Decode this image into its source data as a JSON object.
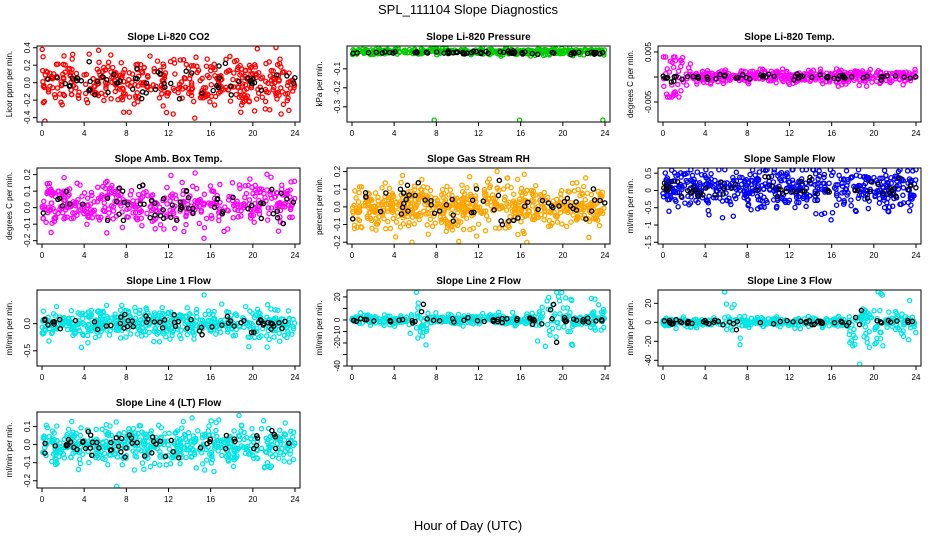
{
  "figure": {
    "title": "SPL_111104  Slope Diagnostics",
    "xlabel": "Hour of Day (UTC)"
  },
  "colors": {
    "black": "#000000",
    "red": "#ff0000",
    "green": "#00cc00",
    "magenta": "#ff00ff",
    "orange": "#ffa500",
    "blue": "#0000ff",
    "cyan": "#00e5e5"
  },
  "chart_data": [
    {
      "type": "scatter",
      "title": "Slope Li-820 CO2",
      "ylabel": "Licor ppm per min.",
      "xlim": [
        0,
        24
      ],
      "xticks": [
        "0",
        "4",
        "8",
        "12",
        "16",
        "20",
        "24"
      ],
      "ylim": [
        -0.45,
        0.42
      ],
      "yticks": [
        {
          "v": -0.4,
          "t": "-0.4"
        },
        {
          "v": -0.2,
          "t": "-0.2"
        },
        {
          "v": 0,
          "t": "0.0"
        },
        {
          "v": 0.2,
          "t": "0.2"
        },
        {
          "v": 0.4,
          "t": "0.4"
        }
      ],
      "series": [
        {
          "color": "red",
          "n": 420,
          "center": 0,
          "spread": 0.14,
          "clip": [
            -0.44,
            0.41
          ]
        },
        {
          "color": "black",
          "n": 60,
          "center": 0,
          "spread": 0.1,
          "clip": [
            -0.3,
            0.3
          ]
        }
      ]
    },
    {
      "type": "scatter",
      "title": "Slope Li-820 Pressure",
      "ylabel": "kPa per min.",
      "xlim": [
        0,
        24
      ],
      "xticks": [
        "0",
        "4",
        "8",
        "12",
        "16",
        "20",
        "24"
      ],
      "ylim": [
        -0.38,
        0.02
      ],
      "yticks": [
        {
          "v": -0.1,
          "t": "-0.1"
        },
        {
          "v": -0.2,
          "t": "-0.2"
        },
        {
          "v": -0.3,
          "t": "-0.3"
        }
      ],
      "series": [
        {
          "color": "green",
          "n": 420,
          "center": -0.01,
          "spread": 0.008,
          "clip": [
            -0.06,
            0.01
          ]
        },
        {
          "color": "black",
          "n": 70,
          "center": -0.015,
          "spread": 0.004,
          "clip": [
            -0.03,
            0.0
          ]
        }
      ],
      "extra_points": [
        {
          "color": "green",
          "x": 7.8,
          "y": -0.37
        },
        {
          "color": "green",
          "x": 15.9,
          "y": -0.37
        },
        {
          "color": "green",
          "x": 23.8,
          "y": -0.37
        }
      ]
    },
    {
      "type": "scatter",
      "title": "Slope Li-820 Temp.",
      "ylabel": "degrees C per min.",
      "xlim": [
        0,
        24
      ],
      "xticks": [
        "0",
        "4",
        "8",
        "12",
        "16",
        "20",
        "24"
      ],
      "ylim": [
        -0.009,
        0.0062
      ],
      "yticks": [
        {
          "v": 0.005,
          "t": "0.005"
        },
        {
          "v": 0,
          "t": ""
        },
        {
          "v": -0.005,
          "t": "-0.005"
        }
      ],
      "series": [
        {
          "color": "magenta",
          "n": 420,
          "center": 0,
          "spread": 0.0007,
          "clip": [
            -0.004,
            0.004
          ],
          "early_spread": 0.004
        },
        {
          "color": "black",
          "n": 60,
          "center": 0,
          "spread": 0.0003,
          "clip": [
            -0.0015,
            0.0015
          ]
        }
      ]
    },
    {
      "type": "scatter",
      "title": "Slope Amb. Box Temp.",
      "ylabel": "degrees C per min.",
      "xlim": [
        0,
        24
      ],
      "xticks": [
        "0",
        "4",
        "8",
        "12",
        "16",
        "20",
        "24"
      ],
      "ylim": [
        -0.22,
        0.24
      ],
      "yticks": [
        {
          "v": -0.2,
          "t": "-0.2"
        },
        {
          "v": -0.1,
          "t": "-0.1"
        },
        {
          "v": 0,
          "t": "0.0"
        },
        {
          "v": 0.1,
          "t": "0.1"
        },
        {
          "v": 0.2,
          "t": "0.2"
        }
      ],
      "series": [
        {
          "color": "magenta",
          "n": 420,
          "center": 0.02,
          "spread": 0.07,
          "clip": [
            -0.21,
            0.22
          ]
        },
        {
          "color": "black",
          "n": 60,
          "center": 0.01,
          "spread": 0.06,
          "clip": [
            -0.15,
            0.15
          ]
        }
      ]
    },
    {
      "type": "scatter",
      "title": "Slope Gas Stream RH",
      "ylabel": "percent per min.",
      "xlim": [
        0,
        24
      ],
      "xticks": [
        "0",
        "4",
        "8",
        "12",
        "16",
        "20",
        "24"
      ],
      "ylim": [
        -0.21,
        0.22
      ],
      "yticks": [
        {
          "v": -0.2,
          "t": "-0.2"
        },
        {
          "v": -0.1,
          "t": "-0.1"
        },
        {
          "v": 0,
          "t": "0.0"
        },
        {
          "v": 0.1,
          "t": "0.1"
        },
        {
          "v": 0.2,
          "t": "0.2"
        }
      ],
      "series": [
        {
          "color": "orange",
          "n": 620,
          "center": 0,
          "spread": 0.065,
          "clip": [
            -0.2,
            0.2
          ]
        },
        {
          "color": "black",
          "n": 60,
          "center": 0.01,
          "spread": 0.06,
          "clip": [
            -0.15,
            0.15
          ]
        }
      ]
    },
    {
      "type": "scatter",
      "title": "Slope Sample Flow",
      "ylabel": "ml/min per min.",
      "xlim": [
        0,
        24
      ],
      "xticks": [
        "0",
        "4",
        "8",
        "12",
        "16",
        "20",
        "24"
      ],
      "ylim": [
        -1.55,
        0.65
      ],
      "yticks": [
        {
          "v": 0.5,
          "t": "0.5"
        },
        {
          "v": 0,
          "t": "0"
        },
        {
          "v": -0.5,
          "t": "-0.5"
        },
        {
          "v": -1,
          "t": "-1"
        },
        {
          "v": -1.5,
          "t": "-1.5"
        }
      ],
      "series": [
        {
          "color": "blue",
          "n": 520,
          "center": 0.05,
          "spread": 0.3,
          "clip": [
            -1.5,
            0.6
          ]
        },
        {
          "color": "black",
          "n": 60,
          "center": 0.05,
          "spread": 0.15,
          "clip": [
            -0.5,
            0.5
          ]
        }
      ]
    },
    {
      "type": "scatter",
      "title": "Slope Line 1 Flow",
      "ylabel": "ml/min per min.",
      "xlim": [
        0,
        24
      ],
      "xticks": [
        "0",
        "4",
        "8",
        "12",
        "16",
        "20",
        "24"
      ],
      "ylim": [
        -0.78,
        0.62
      ],
      "yticks": [
        {
          "v": 0,
          "t": "0.0"
        },
        {
          "v": -0.5,
          "t": "-0.5"
        }
      ],
      "series": [
        {
          "color": "cyan",
          "n": 520,
          "center": 0,
          "spread": 0.14,
          "clip": [
            -0.75,
            0.6
          ]
        },
        {
          "color": "black",
          "n": 60,
          "center": 0,
          "spread": 0.08,
          "clip": [
            -0.3,
            0.3
          ]
        }
      ]
    },
    {
      "type": "scatter",
      "title": "Slope Line 2 Flow",
      "ylabel": "ml/min per min.",
      "xlim": [
        0,
        24
      ],
      "xticks": [
        "0",
        "4",
        "8",
        "12",
        "16",
        "20",
        "24"
      ],
      "ylim": [
        -40,
        26
      ],
      "yticks": [
        {
          "v": 20,
          "t": "20"
        },
        {
          "v": 10,
          "t": ""
        },
        {
          "v": 0,
          "t": "0"
        },
        {
          "v": -10,
          "t": "-10"
        },
        {
          "v": -20,
          "t": "-20"
        },
        {
          "v": -30,
          "t": ""
        },
        {
          "v": -40,
          "t": "-40"
        }
      ],
      "series": [
        {
          "color": "cyan",
          "n": 420,
          "center": 0,
          "spread": 2.2,
          "clip": [
            -38,
            24
          ],
          "bursts": [
            [
              5.5,
              7.5,
              14
            ],
            [
              17.5,
              21,
              18
            ],
            [
              22,
              24,
              8
            ]
          ]
        },
        {
          "color": "black",
          "n": 60,
          "center": 0,
          "spread": 1.3,
          "clip": [
            -37,
            22
          ],
          "bursts": [
            [
              6.5,
              7,
              18
            ],
            [
              18,
              19.5,
              18
            ]
          ]
        }
      ]
    },
    {
      "type": "scatter",
      "title": "Slope Line 3 Flow",
      "ylabel": "ml/min per min.",
      "xlim": [
        0,
        24
      ],
      "xticks": [
        "0",
        "4",
        "8",
        "12",
        "16",
        "20",
        "24"
      ],
      "ylim": [
        -46,
        34
      ],
      "yticks": [
        {
          "v": 20,
          "t": "20"
        },
        {
          "v": 0,
          "t": "0"
        },
        {
          "v": -20,
          "t": "-20"
        },
        {
          "v": -40,
          "t": "-40"
        }
      ],
      "series": [
        {
          "color": "cyan",
          "n": 420,
          "center": 0,
          "spread": 2.5,
          "clip": [
            -44,
            32
          ],
          "bursts": [
            [
              5.5,
              7.5,
              16
            ],
            [
              17.5,
              21,
              20
            ],
            [
              22,
              24,
              9
            ]
          ]
        },
        {
          "color": "black",
          "n": 60,
          "center": 0,
          "spread": 1.5,
          "clip": [
            -40,
            26
          ],
          "bursts": [
            [
              6.5,
              7,
              18
            ],
            [
              18,
              19.5,
              18
            ]
          ]
        }
      ]
    },
    {
      "type": "scatter",
      "title": "Slope Line 4 (LT) Flow",
      "ylabel": "ml/min per min.",
      "xlim": [
        0,
        24
      ],
      "xticks": [
        "0",
        "4",
        "8",
        "12",
        "16",
        "20",
        "24"
      ],
      "ylim": [
        -0.24,
        0.18
      ],
      "yticks": [
        {
          "v": 0.1,
          "t": "0.1"
        },
        {
          "v": 0,
          "t": "0.0"
        },
        {
          "v": -0.1,
          "t": "-0.1"
        },
        {
          "v": -0.2,
          "t": "-0.2"
        }
      ],
      "series": [
        {
          "color": "cyan",
          "n": 520,
          "center": 0,
          "spread": 0.055,
          "clip": [
            -0.23,
            0.17
          ]
        },
        {
          "color": "black",
          "n": 60,
          "center": 0,
          "spread": 0.035,
          "clip": [
            -0.1,
            0.1
          ]
        }
      ]
    }
  ]
}
